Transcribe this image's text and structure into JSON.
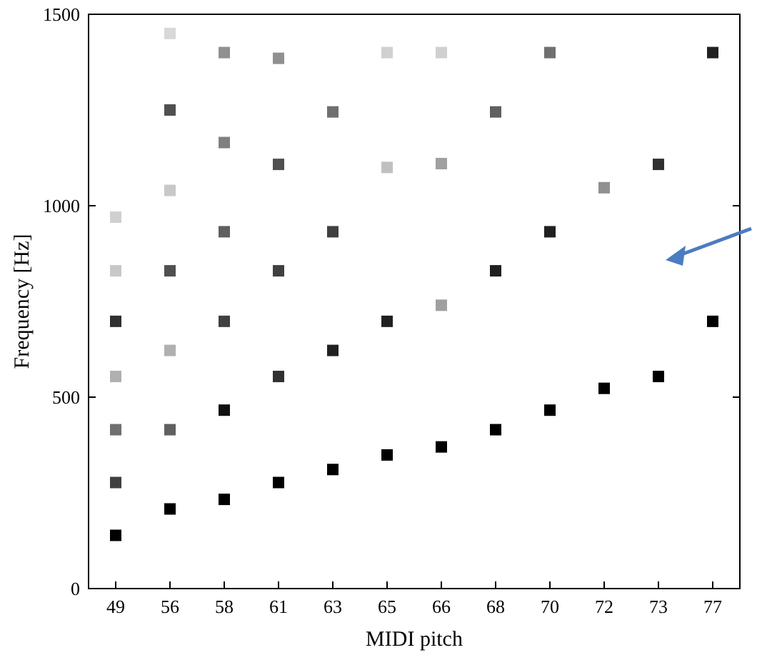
{
  "chart_data": {
    "type": "scatter",
    "xlabel": "MIDI pitch",
    "ylabel": "Frequency [Hz]",
    "categories": [
      "49",
      "56",
      "58",
      "61",
      "63",
      "65",
      "66",
      "68",
      "70",
      "72",
      "73",
      "77"
    ],
    "ylim": [
      0,
      1500
    ],
    "yticks": [
      0,
      500,
      1000,
      1500
    ],
    "grid": false,
    "marker": "square",
    "series": [
      {
        "x": [
          "49",
          "49",
          "49",
          "49",
          "49",
          "49",
          "49",
          "56",
          "56",
          "56",
          "56",
          "56",
          "56",
          "56",
          "58",
          "58",
          "58",
          "58",
          "58",
          "58",
          "61",
          "61",
          "61",
          "61",
          "61",
          "63",
          "63",
          "63",
          "63",
          "65",
          "65",
          "65",
          "65",
          "66",
          "66",
          "66",
          "66",
          "68",
          "68",
          "68",
          "70",
          "70",
          "70",
          "72",
          "72",
          "73",
          "73",
          "77",
          "77"
        ],
        "values": [
          139,
          277,
          415,
          554,
          698,
          830,
          970,
          208,
          415,
          622,
          830,
          1040,
          1250,
          1450,
          233,
          466,
          698,
          932,
          1165,
          1400,
          277,
          554,
          830,
          1108,
          1385,
          311,
          622,
          932,
          1245,
          349,
          698,
          1100,
          1400,
          370,
          740,
          1110,
          1400,
          415,
          830,
          1245,
          466,
          932,
          1400,
          523,
          1047,
          554,
          1108,
          698,
          1400
        ],
        "colors": [
          "#000000",
          "#404040",
          "#707070",
          "#b0b0b0",
          "#303030",
          "#c8c8c8",
          "#d0d0d0",
          "#000000",
          "#606060",
          "#b0b0b0",
          "#505050",
          "#c8c8c8",
          "#505050",
          "#d8d8d8",
          "#000000",
          "#101010",
          "#404040",
          "#606060",
          "#808080",
          "#909090",
          "#000000",
          "#303030",
          "#404040",
          "#505050",
          "#909090",
          "#000000",
          "#202020",
          "#404040",
          "#707070",
          "#000000",
          "#202020",
          "#c0c0c0",
          "#d0d0d0",
          "#000000",
          "#a0a0a0",
          "#a0a0a0",
          "#d0d0d0",
          "#000000",
          "#202020",
          "#606060",
          "#000000",
          "#202020",
          "#707070",
          "#000000",
          "#909090",
          "#000000",
          "#303030",
          "#000000",
          "#202020"
        ]
      }
    ]
  }
}
